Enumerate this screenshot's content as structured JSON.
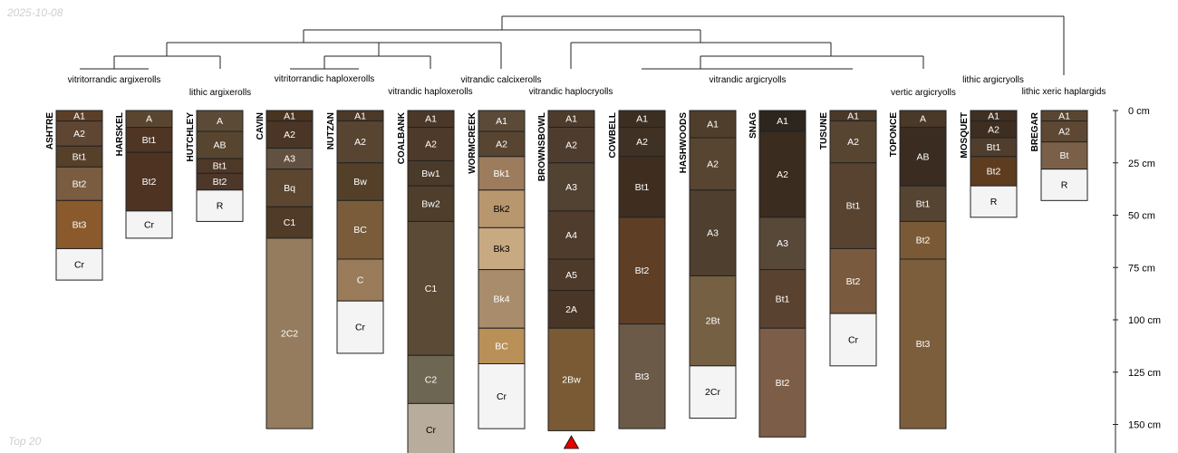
{
  "corner_top_left": "2025-10-08",
  "corner_bottom_left": "Top 20",
  "colors": {
    "line": "#222222",
    "marker": "#e00000",
    "missing": "#f2f2f2"
  },
  "chart_data": {
    "type": "soil-profile-sketch",
    "depth_unit": "cm",
    "ylim": [
      0,
      160
    ],
    "depth_ticks": [
      0,
      25,
      50,
      75,
      100,
      125,
      150
    ],
    "depth_tick_labels": [
      "0 cm",
      "25 cm",
      "50 cm",
      "75 cm",
      "100 cm",
      "125 cm",
      "150 cm"
    ],
    "profiles": [
      {
        "name": "ASHTRE",
        "horizons": [
          {
            "name": "A1",
            "top": 0,
            "bottom": 5,
            "color": "#5b3f26"
          },
          {
            "name": "A2",
            "top": 5,
            "bottom": 17,
            "color": "#5e4632"
          },
          {
            "name": "Bt1",
            "top": 17,
            "bottom": 27,
            "color": "#57402a"
          },
          {
            "name": "Bt2",
            "top": 27,
            "bottom": 43,
            "color": "#7a5c40"
          },
          {
            "name": "Bt3",
            "top": 43,
            "bottom": 66,
            "color": "#8a5a2c"
          },
          {
            "name": "Cr",
            "top": 66,
            "bottom": 81,
            "color": "#f4f4f4"
          }
        ]
      },
      {
        "name": "HARSKEL",
        "horizons": [
          {
            "name": "A",
            "top": 0,
            "bottom": 8,
            "color": "#5a4630"
          },
          {
            "name": "Bt1",
            "top": 8,
            "bottom": 20,
            "color": "#4e3524"
          },
          {
            "name": "Bt2",
            "top": 20,
            "bottom": 48,
            "color": "#4e3322"
          },
          {
            "name": "Cr",
            "top": 48,
            "bottom": 61,
            "color": "#f4f4f4"
          }
        ]
      },
      {
        "name": "HUTCHLEY",
        "horizons": [
          {
            "name": "A",
            "top": 0,
            "bottom": 10,
            "color": "#5b4a36"
          },
          {
            "name": "AB",
            "top": 10,
            "bottom": 23,
            "color": "#574530"
          },
          {
            "name": "Bt1",
            "top": 23,
            "bottom": 30,
            "color": "#4e3828"
          },
          {
            "name": "Bt2",
            "top": 30,
            "bottom": 38,
            "color": "#4d3729"
          },
          {
            "name": "R",
            "top": 38,
            "bottom": 53,
            "color": "#f4f4f4"
          }
        ]
      },
      {
        "name": "CAVIN",
        "horizons": [
          {
            "name": "A1",
            "top": 0,
            "bottom": 5,
            "color": "#4a3420"
          },
          {
            "name": "A2",
            "top": 5,
            "bottom": 18,
            "color": "#4a3526"
          },
          {
            "name": "A3",
            "top": 18,
            "bottom": 28,
            "color": "#625040"
          },
          {
            "name": "Bq",
            "top": 28,
            "bottom": 46,
            "color": "#5c4630"
          },
          {
            "name": "C1",
            "top": 46,
            "bottom": 61,
            "color": "#4f3b27"
          },
          {
            "name": "2C2",
            "top": 61,
            "bottom": 152,
            "color": "#957c5e"
          }
        ]
      },
      {
        "name": "NUTZAN",
        "horizons": [
          {
            "name": "A1",
            "top": 0,
            "bottom": 5,
            "color": "#4c3826"
          },
          {
            "name": "A2",
            "top": 5,
            "bottom": 25,
            "color": "#574532"
          },
          {
            "name": "Bw",
            "top": 25,
            "bottom": 43,
            "color": "#544028"
          },
          {
            "name": "BC",
            "top": 43,
            "bottom": 71,
            "color": "#7a5c3a"
          },
          {
            "name": "C",
            "top": 71,
            "bottom": 91,
            "color": "#9a7c5a"
          },
          {
            "name": "Cr",
            "top": 91,
            "bottom": 116,
            "color": "#f4f4f4"
          }
        ]
      },
      {
        "name": "COALBANK",
        "horizons": [
          {
            "name": "A1",
            "top": 0,
            "bottom": 8,
            "color": "#4c3828"
          },
          {
            "name": "A2",
            "top": 8,
            "bottom": 24,
            "color": "#4e3a2a"
          },
          {
            "name": "Bw1",
            "top": 24,
            "bottom": 36,
            "color": "#4a3a2a"
          },
          {
            "name": "Bw2",
            "top": 36,
            "bottom": 53,
            "color": "#4f3e2c"
          },
          {
            "name": "C1",
            "top": 53,
            "bottom": 117,
            "color": "#5a4a36"
          },
          {
            "name": "C2",
            "top": 117,
            "bottom": 140,
            "color": "#6c6652"
          },
          {
            "name": "Cr",
            "top": 140,
            "bottom": 165,
            "color": "#b8ad9d"
          }
        ]
      },
      {
        "name": "WORMCREEK",
        "horizons": [
          {
            "name": "A1",
            "top": 0,
            "bottom": 10,
            "color": "#5b4a37"
          },
          {
            "name": "A2",
            "top": 10,
            "bottom": 22,
            "color": "#574532"
          },
          {
            "name": "Bk1",
            "top": 22,
            "bottom": 38,
            "color": "#9c7c5d"
          },
          {
            "name": "Bk2",
            "top": 38,
            "bottom": 56,
            "color": "#b8976f"
          },
          {
            "name": "Bk3",
            "top": 56,
            "bottom": 76,
            "color": "#c8aa82"
          },
          {
            "name": "Bk4",
            "top": 76,
            "bottom": 104,
            "color": "#a88c6c"
          },
          {
            "name": "BC",
            "top": 104,
            "bottom": 121,
            "color": "#b89058"
          },
          {
            "name": "Cr",
            "top": 121,
            "bottom": 152,
            "color": "#f4f4f4"
          }
        ]
      },
      {
        "name": "BROWNSBOWL",
        "horizons": [
          {
            "name": "A1",
            "top": 0,
            "bottom": 8,
            "color": "#4d3b2b"
          },
          {
            "name": "A2",
            "top": 8,
            "bottom": 25,
            "color": "#4e3d2f"
          },
          {
            "name": "A3",
            "top": 25,
            "bottom": 48,
            "color": "#524232"
          },
          {
            "name": "A4",
            "top": 48,
            "bottom": 71,
            "color": "#4f3c2c"
          },
          {
            "name": "A5",
            "top": 71,
            "bottom": 86,
            "color": "#4d3a2a"
          },
          {
            "name": "2A",
            "top": 86,
            "bottom": 104,
            "color": "#4a3626"
          },
          {
            "name": "2Bw",
            "top": 104,
            "bottom": 153,
            "color": "#7a5a34"
          }
        ]
      },
      {
        "name": "COWBELL",
        "horizons": [
          {
            "name": "A1",
            "top": 0,
            "bottom": 8,
            "color": "#3c2f22"
          },
          {
            "name": "A2",
            "top": 8,
            "bottom": 22,
            "color": "#3f3124"
          },
          {
            "name": "Bt1",
            "top": 22,
            "bottom": 51,
            "color": "#3f2e20"
          },
          {
            "name": "Bt2",
            "top": 51,
            "bottom": 102,
            "color": "#5e3f26"
          },
          {
            "name": "Bt3",
            "top": 102,
            "bottom": 152,
            "color": "#6c5a48"
          }
        ]
      },
      {
        "name": "HASHWOODS",
        "horizons": [
          {
            "name": "A1",
            "top": 0,
            "bottom": 13,
            "color": "#4f3e2c"
          },
          {
            "name": "A2",
            "top": 13,
            "bottom": 38,
            "color": "#574532"
          },
          {
            "name": "A3",
            "top": 38,
            "bottom": 79,
            "color": "#4e3f2e"
          },
          {
            "name": "2Bt",
            "top": 79,
            "bottom": 122,
            "color": "#756044"
          },
          {
            "name": "2Cr",
            "top": 122,
            "bottom": 147,
            "color": "#f4f4f4"
          }
        ]
      },
      {
        "name": "SNAG",
        "horizons": [
          {
            "name": "A1",
            "top": 0,
            "bottom": 10,
            "color": "#2d261f"
          },
          {
            "name": "A2",
            "top": 10,
            "bottom": 51,
            "color": "#3a2c1e"
          },
          {
            "name": "A3",
            "top": 51,
            "bottom": 76,
            "color": "#584838"
          },
          {
            "name": "Bt1",
            "top": 76,
            "bottom": 104,
            "color": "#5a4230"
          },
          {
            "name": "Bt2",
            "top": 104,
            "bottom": 156,
            "color": "#7c5e48"
          }
        ]
      },
      {
        "name": "TUSUNE",
        "horizons": [
          {
            "name": "A1",
            "top": 0,
            "bottom": 5,
            "color": "#4a3828"
          },
          {
            "name": "A2",
            "top": 5,
            "bottom": 25,
            "color": "#574532"
          },
          {
            "name": "Bt1",
            "top": 25,
            "bottom": 66,
            "color": "#574330"
          },
          {
            "name": "Bt2",
            "top": 66,
            "bottom": 97,
            "color": "#7a5a3e"
          },
          {
            "name": "Cr",
            "top": 97,
            "bottom": 122,
            "color": "#f4f4f4"
          }
        ]
      },
      {
        "name": "TOPONCE",
        "horizons": [
          {
            "name": "A",
            "top": 0,
            "bottom": 8,
            "color": "#4a3828"
          },
          {
            "name": "AB",
            "top": 8,
            "bottom": 36,
            "color": "#3a2c20"
          },
          {
            "name": "Bt1",
            "top": 36,
            "bottom": 53,
            "color": "#554432"
          },
          {
            "name": "Bt2",
            "top": 53,
            "bottom": 71,
            "color": "#7a5a36"
          },
          {
            "name": "Bt3",
            "top": 71,
            "bottom": 152,
            "color": "#7c5e3c"
          }
        ]
      },
      {
        "name": "MOSQUET",
        "horizons": [
          {
            "name": "A1",
            "top": 0,
            "bottom": 5,
            "color": "#3f3022"
          },
          {
            "name": "A2",
            "top": 5,
            "bottom": 13,
            "color": "#3e2e22"
          },
          {
            "name": "Bt1",
            "top": 13,
            "bottom": 22,
            "color": "#4f3e2e"
          },
          {
            "name": "Bt2",
            "top": 22,
            "bottom": 36,
            "color": "#5e3c20"
          },
          {
            "name": "R",
            "top": 36,
            "bottom": 51,
            "color": "#f4f4f4"
          }
        ]
      },
      {
        "name": "BREGAR",
        "horizons": [
          {
            "name": "A1",
            "top": 0,
            "bottom": 5,
            "color": "#5a4630"
          },
          {
            "name": "A2",
            "top": 5,
            "bottom": 15,
            "color": "#5e4834"
          },
          {
            "name": "Bt",
            "top": 15,
            "bottom": 28,
            "color": "#7a6048"
          },
          {
            "name": "R",
            "top": 28,
            "bottom": 43,
            "color": "#f4f4f4"
          }
        ]
      }
    ],
    "taxon_labels": [
      "vitritorrandic argixerolls",
      "lithic argixerolls",
      "vitritorrandic haploxerolls",
      "vitrandic haploxerolls",
      "vitrandic calcixerolls",
      "vitrandic haplocryolls",
      "vitrandic argicryolls",
      "vertic argicryolls",
      "lithic argicryolls",
      "lithic xeric haplargids"
    ],
    "truncated_profile": "BROWNSBOWL",
    "dendrogram": "leaf order: ASHTRE, HARSKEL, HUTCHLEY, CAVIN, NUTZAN, COALBANK, WORMCREEK, BROWNSBOWL, COWBELL, HASHWOODS, SNAG, TUSUNE, TOPONCE, MOSQUET, BREGAR",
    "grid": false,
    "legend": "none"
  }
}
